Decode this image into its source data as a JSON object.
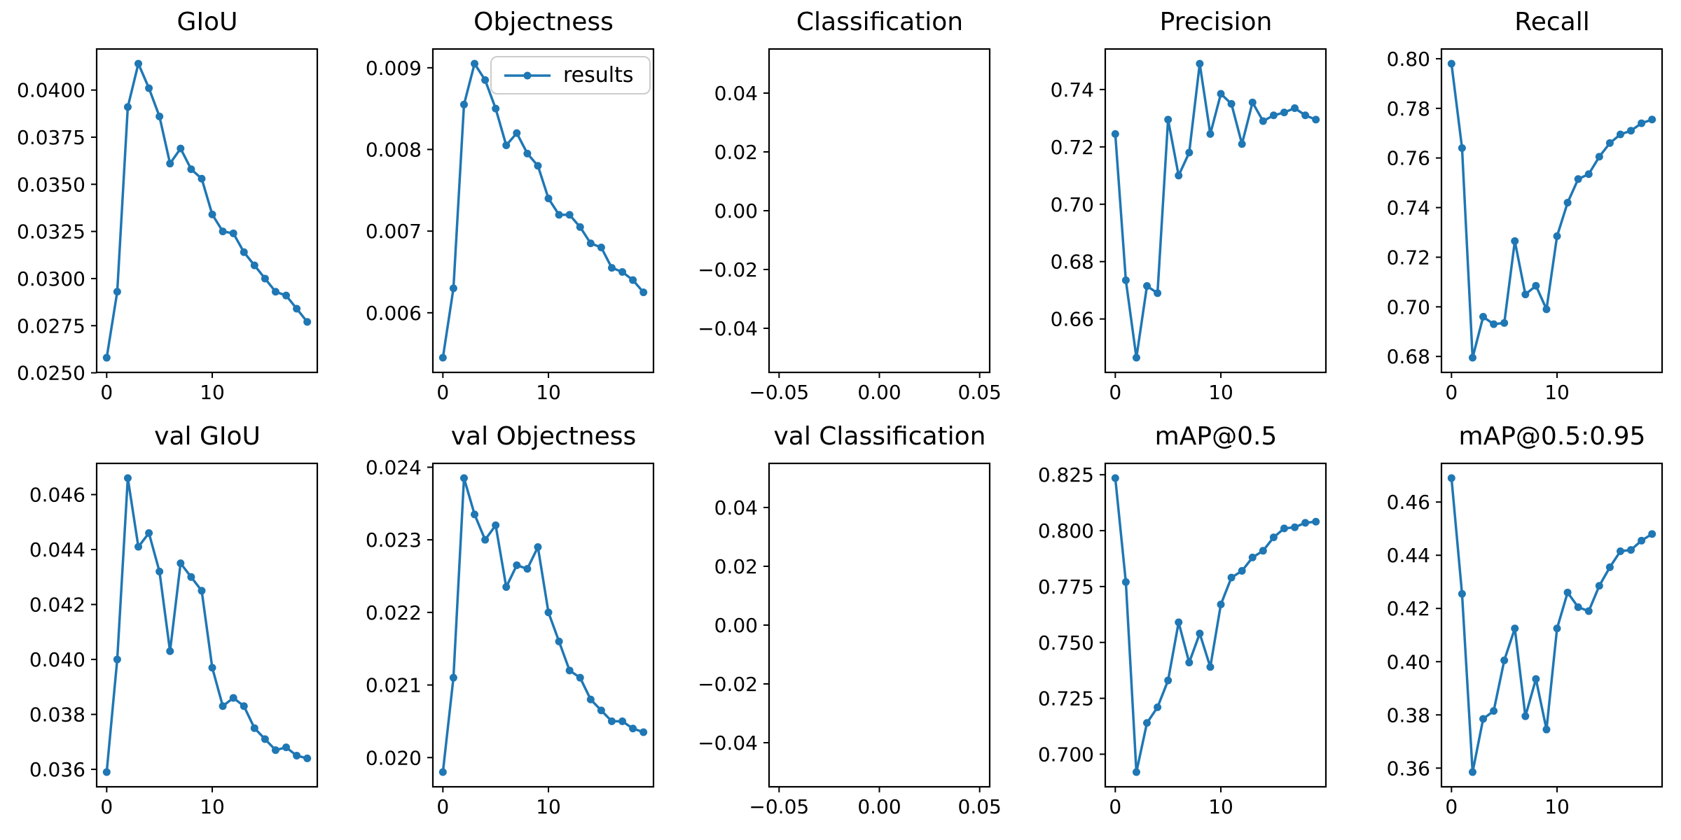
{
  "figure": {
    "background": "#ffffff",
    "accent_color": "#1f77b4",
    "rows": 2,
    "cols": 5
  },
  "legend": {
    "label": "results"
  },
  "chart_data": [
    {
      "id": "giou",
      "title": "GIoU",
      "type": "line",
      "x": [
        0,
        1,
        2,
        3,
        4,
        5,
        6,
        7,
        8,
        9,
        10,
        11,
        12,
        13,
        14,
        15,
        16,
        17,
        18,
        19
      ],
      "series": [
        {
          "name": "results",
          "values": [
            0.0258,
            0.0293,
            0.0391,
            0.0414,
            0.0401,
            0.0386,
            0.0361,
            0.0369,
            0.0358,
            0.0353,
            0.0334,
            0.0325,
            0.0324,
            0.0314,
            0.0307,
            0.03,
            0.0293,
            0.0291,
            0.0284,
            0.0277
          ]
        }
      ],
      "color": "#1f77b4",
      "xlim": [
        -0.95,
        19.95
      ],
      "ylim": [
        0.025022,
        0.042178
      ],
      "xticks": {
        "values": [
          0,
          10
        ],
        "labels": [
          "0",
          "10"
        ]
      },
      "yticks": {
        "values": [
          0.025,
          0.0275,
          0.03,
          0.0325,
          0.035,
          0.0375,
          0.04
        ],
        "labels": [
          "0.0250",
          "0.0275",
          "0.0300",
          "0.0325",
          "0.0350",
          "0.0375",
          "0.0400"
        ]
      },
      "legend": null
    },
    {
      "id": "objectness",
      "title": "Objectness",
      "type": "line",
      "x": [
        0,
        1,
        2,
        3,
        4,
        5,
        6,
        7,
        8,
        9,
        10,
        11,
        12,
        13,
        14,
        15,
        16,
        17,
        18,
        19
      ],
      "series": [
        {
          "name": "results",
          "values": [
            0.00545,
            0.0063,
            0.00855,
            0.00905,
            0.00885,
            0.0085,
            0.00805,
            0.0082,
            0.00795,
            0.0078,
            0.0074,
            0.0072,
            0.0072,
            0.00705,
            0.00685,
            0.0068,
            0.00655,
            0.0065,
            0.0064,
            0.00625
          ]
        }
      ],
      "color": "#1f77b4",
      "xlim": [
        -0.95,
        19.95
      ],
      "ylim": [
        0.00527,
        0.00923
      ],
      "xticks": {
        "values": [
          0,
          10
        ],
        "labels": [
          "0",
          "10"
        ]
      },
      "yticks": {
        "values": [
          0.006,
          0.007,
          0.008,
          0.009
        ],
        "labels": [
          "0.006",
          "0.007",
          "0.008",
          "0.009"
        ]
      },
      "legend": {
        "label": "results",
        "position": "upper right"
      }
    },
    {
      "id": "classification",
      "title": "Classification",
      "type": "line",
      "x": [],
      "series": [],
      "color": "#1f77b4",
      "xlim": [
        -0.055,
        0.055
      ],
      "ylim": [
        -0.055,
        0.055
      ],
      "xticks": {
        "values": [
          -0.05,
          0.0,
          0.05
        ],
        "labels": [
          "−0.05",
          "0.00",
          "0.05"
        ]
      },
      "yticks": {
        "values": [
          0.04,
          0.02,
          0.0,
          -0.02,
          -0.04
        ],
        "labels": [
          "0.04",
          "0.02",
          "0.00",
          "−0.02",
          "−0.04"
        ]
      },
      "legend": null
    },
    {
      "id": "precision",
      "title": "Precision",
      "type": "line",
      "x": [
        0,
        1,
        2,
        3,
        4,
        5,
        6,
        7,
        8,
        9,
        10,
        11,
        12,
        13,
        14,
        15,
        16,
        17,
        18,
        19
      ],
      "series": [
        {
          "name": "results",
          "values": [
            0.7245,
            0.6735,
            0.6465,
            0.6715,
            0.669,
            0.7295,
            0.71,
            0.718,
            0.749,
            0.7245,
            0.7385,
            0.735,
            0.721,
            0.7355,
            0.729,
            0.731,
            0.732,
            0.7335,
            0.731,
            0.7295
          ]
        }
      ],
      "color": "#1f77b4",
      "xlim": [
        -0.95,
        19.95
      ],
      "ylim": [
        0.641375,
        0.754125
      ],
      "xticks": {
        "values": [
          0,
          10
        ],
        "labels": [
          "0",
          "10"
        ]
      },
      "yticks": {
        "values": [
          0.66,
          0.68,
          0.7,
          0.72,
          0.74
        ],
        "labels": [
          "0.66",
          "0.68",
          "0.70",
          "0.72",
          "0.74"
        ]
      },
      "legend": null
    },
    {
      "id": "recall",
      "title": "Recall",
      "type": "line",
      "x": [
        0,
        1,
        2,
        3,
        4,
        5,
        6,
        7,
        8,
        9,
        10,
        11,
        12,
        13,
        14,
        15,
        16,
        17,
        18,
        19
      ],
      "series": [
        {
          "name": "results",
          "values": [
            0.798,
            0.764,
            0.6795,
            0.696,
            0.693,
            0.6935,
            0.7265,
            0.705,
            0.7085,
            0.699,
            0.7285,
            0.742,
            0.7515,
            0.7535,
            0.7605,
            0.766,
            0.7695,
            0.771,
            0.774,
            0.7755
          ]
        }
      ],
      "color": "#1f77b4",
      "xlim": [
        -0.95,
        19.95
      ],
      "ylim": [
        0.673575,
        0.803925
      ],
      "xticks": {
        "values": [
          0,
          10
        ],
        "labels": [
          "0",
          "10"
        ]
      },
      "yticks": {
        "values": [
          0.68,
          0.7,
          0.72,
          0.74,
          0.76,
          0.78,
          0.8
        ],
        "labels": [
          "0.68",
          "0.70",
          "0.72",
          "0.74",
          "0.76",
          "0.78",
          "0.80"
        ]
      },
      "legend": null
    },
    {
      "id": "val-giou",
      "title": "val GIoU",
      "type": "line",
      "x": [
        0,
        1,
        2,
        3,
        4,
        5,
        6,
        7,
        8,
        9,
        10,
        11,
        12,
        13,
        14,
        15,
        16,
        17,
        18,
        19
      ],
      "series": [
        {
          "name": "results",
          "values": [
            0.0359,
            0.04,
            0.0466,
            0.0441,
            0.0446,
            0.0432,
            0.0403,
            0.0435,
            0.043,
            0.0425,
            0.0397,
            0.0383,
            0.0386,
            0.0383,
            0.0375,
            0.0371,
            0.0367,
            0.0368,
            0.0365,
            0.0364
          ]
        }
      ],
      "color": "#1f77b4",
      "xlim": [
        -0.95,
        19.95
      ],
      "ylim": [
        0.035365,
        0.047135
      ],
      "xticks": {
        "values": [
          0,
          10
        ],
        "labels": [
          "0",
          "10"
        ]
      },
      "yticks": {
        "values": [
          0.036,
          0.038,
          0.04,
          0.042,
          0.044,
          0.046
        ],
        "labels": [
          "0.036",
          "0.038",
          "0.040",
          "0.042",
          "0.044",
          "0.046"
        ]
      },
      "legend": null
    },
    {
      "id": "val-objectness",
      "title": "val Objectness",
      "type": "line",
      "x": [
        0,
        1,
        2,
        3,
        4,
        5,
        6,
        7,
        8,
        9,
        10,
        11,
        12,
        13,
        14,
        15,
        16,
        17,
        18,
        19
      ],
      "series": [
        {
          "name": "results",
          "values": [
            0.0198,
            0.0211,
            0.02385,
            0.02335,
            0.023,
            0.0232,
            0.02235,
            0.02265,
            0.0226,
            0.0229,
            0.022,
            0.0216,
            0.0212,
            0.0211,
            0.0208,
            0.02065,
            0.0205,
            0.0205,
            0.0204,
            0.02035
          ]
        }
      ],
      "color": "#1f77b4",
      "xlim": [
        -0.95,
        19.95
      ],
      "ylim": [
        0.0195975,
        0.0240525
      ],
      "xticks": {
        "values": [
          0,
          10
        ],
        "labels": [
          "0",
          "10"
        ]
      },
      "yticks": {
        "values": [
          0.02,
          0.021,
          0.022,
          0.023,
          0.024
        ],
        "labels": [
          "0.020",
          "0.021",
          "0.022",
          "0.023",
          "0.024"
        ]
      },
      "legend": null
    },
    {
      "id": "val-classification",
      "title": "val Classification",
      "type": "line",
      "x": [],
      "series": [],
      "color": "#1f77b4",
      "xlim": [
        -0.055,
        0.055
      ],
      "ylim": [
        -0.055,
        0.055
      ],
      "xticks": {
        "values": [
          -0.05,
          0.0,
          0.05
        ],
        "labels": [
          "−0.05",
          "0.00",
          "0.05"
        ]
      },
      "yticks": {
        "values": [
          0.04,
          0.02,
          0.0,
          -0.02,
          -0.04
        ],
        "labels": [
          "0.04",
          "0.02",
          "0.00",
          "−0.02",
          "−0.04"
        ]
      },
      "legend": null
    },
    {
      "id": "map05",
      "title": "mAP@0.5",
      "type": "line",
      "x": [
        0,
        1,
        2,
        3,
        4,
        5,
        6,
        7,
        8,
        9,
        10,
        11,
        12,
        13,
        14,
        15,
        16,
        17,
        18,
        19
      ],
      "series": [
        {
          "name": "results",
          "values": [
            0.8235,
            0.777,
            0.692,
            0.714,
            0.721,
            0.733,
            0.759,
            0.741,
            0.754,
            0.739,
            0.767,
            0.779,
            0.782,
            0.788,
            0.791,
            0.797,
            0.801,
            0.8015,
            0.8035,
            0.804
          ]
        }
      ],
      "color": "#1f77b4",
      "xlim": [
        -0.95,
        19.95
      ],
      "ylim": [
        0.685425,
        0.830075
      ],
      "xticks": {
        "values": [
          0,
          10
        ],
        "labels": [
          "0",
          "10"
        ]
      },
      "yticks": {
        "values": [
          0.7,
          0.725,
          0.75,
          0.775,
          0.8,
          0.825
        ],
        "labels": [
          "0.700",
          "0.725",
          "0.750",
          "0.775",
          "0.800",
          "0.825"
        ]
      },
      "legend": null
    },
    {
      "id": "map05-095",
      "title": "mAP@0.5:0.95",
      "type": "line",
      "x": [
        0,
        1,
        2,
        3,
        4,
        5,
        6,
        7,
        8,
        9,
        10,
        11,
        12,
        13,
        14,
        15,
        16,
        17,
        18,
        19
      ],
      "series": [
        {
          "name": "results",
          "values": [
            0.469,
            0.4255,
            0.3585,
            0.3785,
            0.3815,
            0.4005,
            0.4125,
            0.3795,
            0.3935,
            0.3745,
            0.4125,
            0.426,
            0.4205,
            0.419,
            0.4285,
            0.4355,
            0.4415,
            0.442,
            0.4455,
            0.448
          ]
        }
      ],
      "color": "#1f77b4",
      "xlim": [
        -0.95,
        19.95
      ],
      "ylim": [
        0.352975,
        0.474525
      ],
      "xticks": {
        "values": [
          0,
          10
        ],
        "labels": [
          "0",
          "10"
        ]
      },
      "yticks": {
        "values": [
          0.36,
          0.38,
          0.4,
          0.42,
          0.44,
          0.46
        ],
        "labels": [
          "0.36",
          "0.38",
          "0.40",
          "0.42",
          "0.44",
          "0.46"
        ]
      },
      "legend": null
    }
  ]
}
